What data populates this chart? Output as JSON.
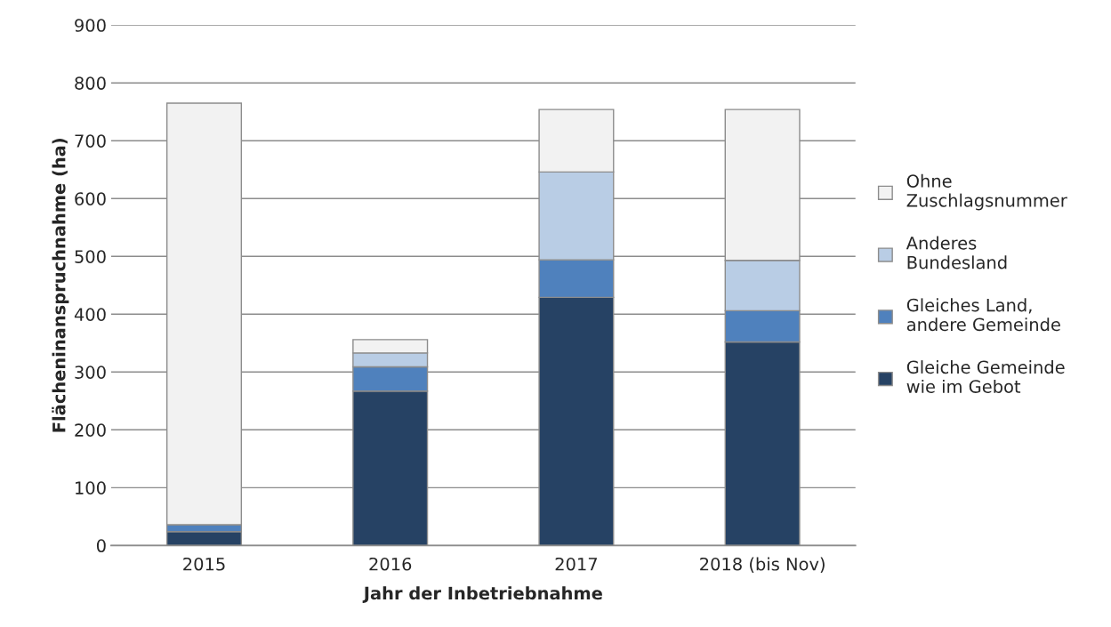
{
  "chart_data": {
    "type": "bar",
    "stacked": true,
    "xlabel": "Jahr der Inbetriebnahme",
    "ylabel": "Flächeninanspruchnahme (ha)",
    "categories": [
      "2015",
      "2016",
      "2017",
      "2018 (bis Nov)"
    ],
    "series": [
      {
        "name": "Gleiche Gemeinde\nwie im Gebot",
        "color": "#264264",
        "values": [
          24,
          267,
          429,
          352
        ]
      },
      {
        "name": "Gleiches Land,\nandere Gemeinde",
        "color": "#4f81bd",
        "values": [
          12,
          42,
          65,
          54
        ]
      },
      {
        "name": "Anderes\nBundesland",
        "color": "#b9cde5",
        "values": [
          0,
          24,
          152,
          87
        ]
      },
      {
        "name": "Ohne\nZuschlagsnummer",
        "color": "#f2f2f2",
        "values": [
          729,
          23,
          108,
          261
        ]
      }
    ],
    "ylim": [
      0,
      900
    ],
    "yticks": [
      0,
      100,
      200,
      300,
      400,
      500,
      600,
      700,
      800,
      900
    ],
    "grid": "y",
    "legend": "right"
  }
}
